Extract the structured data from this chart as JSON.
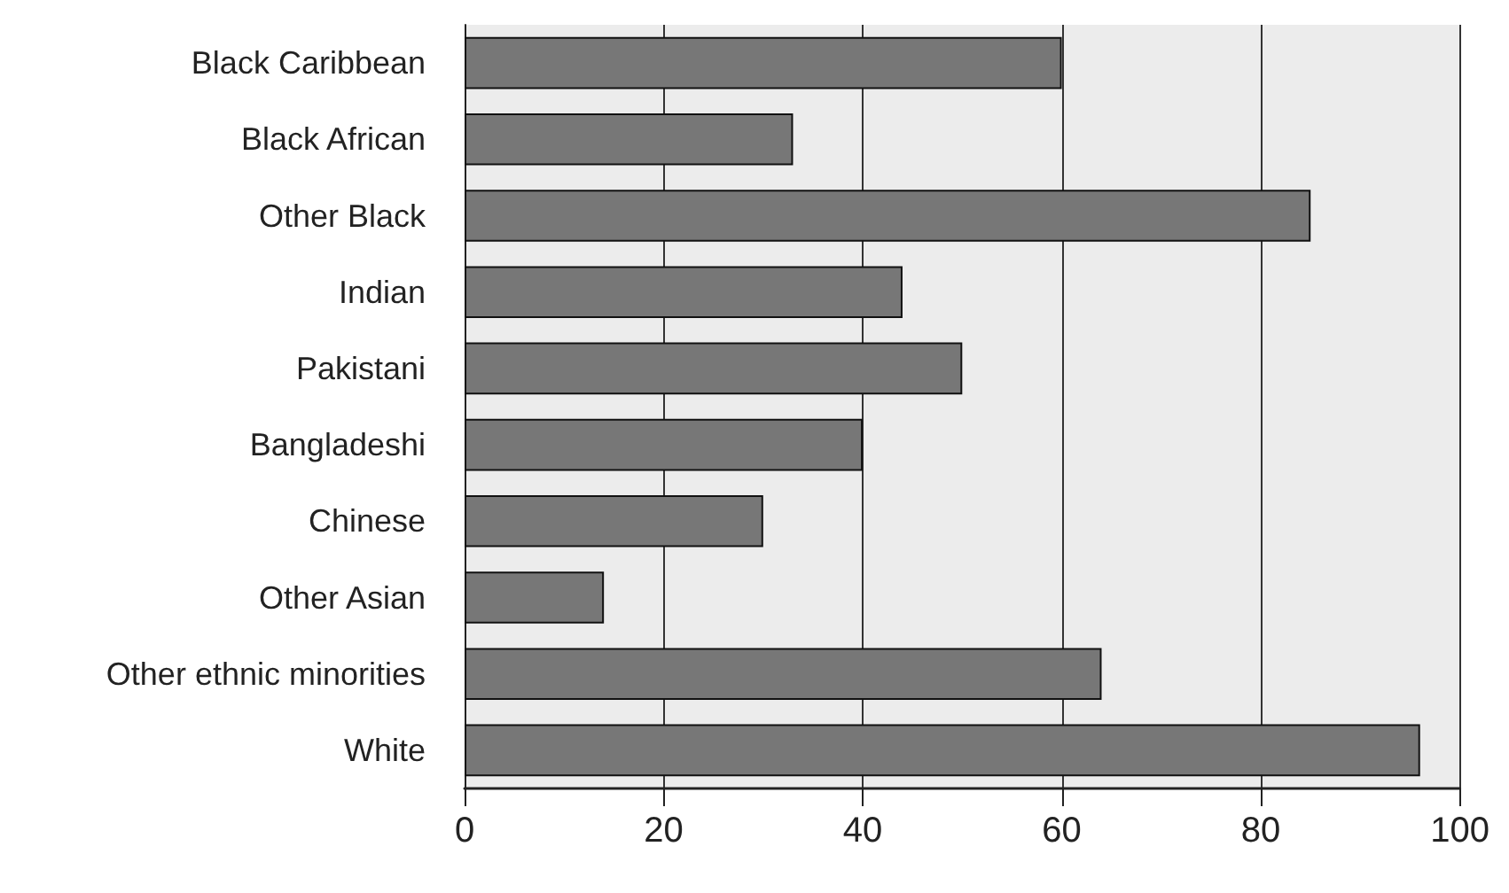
{
  "chart_data": {
    "type": "bar",
    "orientation": "horizontal",
    "categories": [
      "Black Caribbean",
      "Black African",
      "Other Black",
      "Indian",
      "Pakistani",
      "Bangladeshi",
      "Chinese",
      "Other Asian",
      "Other ethnic minorities",
      "White"
    ],
    "values": [
      60,
      33,
      85,
      44,
      50,
      40,
      30,
      14,
      64,
      96
    ],
    "color": "#777777",
    "xlim": [
      0,
      100
    ],
    "xticks": [
      0,
      20,
      40,
      60,
      80,
      100
    ],
    "grid": "x"
  }
}
